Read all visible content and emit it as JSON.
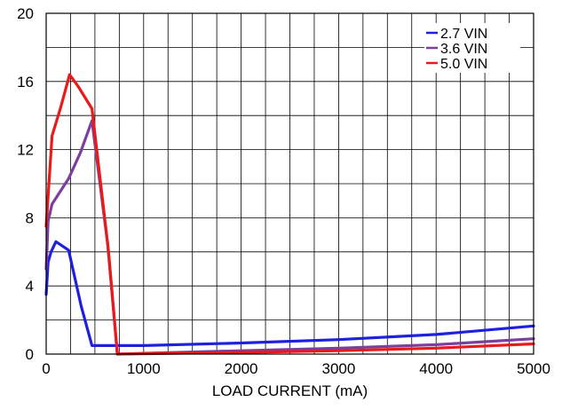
{
  "chart_data": {
    "type": "line",
    "title": "",
    "xlabel": "LOAD CURRENT (mA)",
    "ylabel": "",
    "xlim": [
      0,
      5000
    ],
    "ylim": [
      0,
      20
    ],
    "x_ticks": [
      0,
      1000,
      2000,
      3000,
      4000,
      5000
    ],
    "y_ticks": [
      0,
      4,
      8,
      12,
      16,
      20
    ],
    "x_tick_labels": [
      "0",
      "1000",
      "2000",
      "3000",
      "4000",
      "5000"
    ],
    "y_tick_labels": [
      "0",
      "4",
      "8",
      "12",
      "16",
      "20"
    ],
    "x_minor_step": 250,
    "y_minor_step": 2,
    "grid": true,
    "legend_position": "top-right",
    "series": [
      {
        "name": "2.7 VIN",
        "color": "#1f1fe0",
        "points": [
          [
            0,
            3.5
          ],
          [
            20,
            5.4
          ],
          [
            50,
            6.0
          ],
          [
            100,
            6.6
          ],
          [
            230,
            6.1
          ],
          [
            360,
            2.8
          ],
          [
            470,
            0.5
          ],
          [
            1000,
            0.5
          ],
          [
            2000,
            0.65
          ],
          [
            3000,
            0.85
          ],
          [
            4000,
            1.15
          ],
          [
            5000,
            1.65
          ]
        ]
      },
      {
        "name": "3.6 VIN",
        "color": "#7b3fa0",
        "points": [
          [
            0,
            5.0
          ],
          [
            20,
            7.8
          ],
          [
            60,
            8.8
          ],
          [
            150,
            9.6
          ],
          [
            230,
            10.3
          ],
          [
            350,
            11.8
          ],
          [
            470,
            13.7
          ],
          [
            630,
            6.5
          ],
          [
            730,
            0.0
          ],
          [
            2000,
            0.2
          ],
          [
            3000,
            0.35
          ],
          [
            4000,
            0.55
          ],
          [
            5000,
            0.9
          ]
        ]
      },
      {
        "name": "5.0 VIN",
        "color": "#e81a1a",
        "points": [
          [
            0,
            7.5
          ],
          [
            60,
            12.8
          ],
          [
            150,
            14.5
          ],
          [
            240,
            16.4
          ],
          [
            330,
            15.7
          ],
          [
            470,
            14.4
          ],
          [
            640,
            6.0
          ],
          [
            730,
            0.0
          ],
          [
            2000,
            0.1
          ],
          [
            3000,
            0.2
          ],
          [
            4000,
            0.35
          ],
          [
            5000,
            0.6
          ]
        ]
      }
    ]
  }
}
